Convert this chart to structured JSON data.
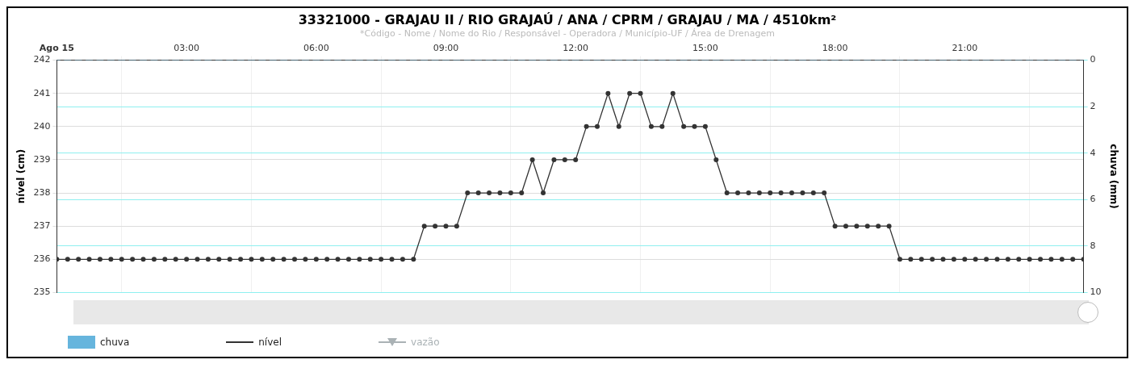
{
  "chart_data": {
    "type": "line",
    "title": "33321000 - GRAJAU II / RIO GRAJAÚ / ANA / CPRM / GRAJAU / MA / 4510km²",
    "subtitle": "*Código - Nome / Nome do Rio / Responsável - Operadora / Município-UF / Área de Drenagem",
    "ylabel": "nível (cm)",
    "y2label": "chuva (mm)",
    "x": [
      0,
      0.25,
      0.5,
      0.75,
      1,
      1.25,
      1.5,
      1.75,
      2,
      2.25,
      2.5,
      2.75,
      3,
      3.25,
      3.5,
      3.75,
      4,
      4.25,
      4.5,
      4.75,
      5,
      5.25,
      5.5,
      5.75,
      6,
      6.25,
      6.5,
      6.75,
      7,
      7.25,
      7.5,
      7.75,
      8,
      8.25,
      8.5,
      8.75,
      9,
      9.25,
      9.5,
      9.75,
      10,
      10.25,
      10.5,
      10.75,
      11,
      11.25,
      11.5,
      11.75,
      12,
      12.25,
      12.5,
      12.75,
      13,
      13.25,
      13.5,
      13.75,
      14,
      14.25,
      14.5,
      14.75,
      15,
      15.25,
      15.5,
      15.75,
      16,
      16.25,
      16.5,
      16.75,
      17,
      17.25,
      17.5,
      17.75,
      18,
      18.25,
      18.5,
      18.75,
      19,
      19.25,
      19.5,
      19.75,
      20,
      20.25,
      20.5,
      20.75,
      21,
      21.25,
      21.5,
      21.75,
      22,
      22.25,
      22.5,
      22.75,
      23,
      23.25,
      23.5,
      23.75
    ],
    "series": [
      {
        "name": "chuva",
        "type": "bar",
        "axis": "y2",
        "color": "#66b5dd",
        "values": [
          0,
          0,
          0,
          0,
          0,
          0,
          0,
          0,
          0,
          0,
          0,
          0,
          0,
          0,
          0,
          0,
          0,
          0,
          0,
          0,
          0,
          0,
          0,
          0,
          0,
          0,
          0,
          0,
          0,
          0,
          0,
          0,
          0,
          0,
          0,
          0,
          0,
          0,
          0,
          0,
          0,
          0,
          0,
          0,
          0,
          0,
          0,
          0,
          0,
          0,
          0,
          0,
          0,
          0,
          0,
          0,
          0,
          0,
          0,
          0,
          0,
          0,
          0,
          0,
          0,
          0,
          0,
          0,
          0,
          0,
          0,
          0,
          0,
          0,
          0,
          0,
          0,
          0,
          0,
          0,
          0,
          0,
          0,
          0,
          0,
          0,
          0,
          0,
          0,
          0,
          0,
          0,
          0,
          0,
          0,
          0
        ]
      },
      {
        "name": "nível",
        "color": "#333333",
        "marker": "circle",
        "values": [
          236,
          236,
          236,
          236,
          236,
          236,
          236,
          236,
          236,
          236,
          236,
          236,
          236,
          236,
          236,
          236,
          236,
          236,
          236,
          236,
          236,
          236,
          236,
          236,
          236,
          236,
          236,
          236,
          236,
          236,
          236,
          236,
          236,
          236,
          237,
          237,
          237,
          237,
          238,
          238,
          238,
          238,
          238,
          238,
          239,
          238,
          239,
          239,
          239,
          240,
          240,
          241,
          240,
          241,
          241,
          240,
          240,
          241,
          240,
          240,
          240,
          239,
          238,
          238,
          238,
          238,
          238,
          238,
          238,
          238,
          238,
          238,
          237,
          237,
          237,
          237,
          237,
          237,
          236,
          236,
          236,
          236,
          236,
          236,
          236,
          236,
          236,
          236,
          236,
          236,
          236,
          236,
          236,
          236,
          236,
          236
        ]
      },
      {
        "name": "vazão",
        "type": "line",
        "color": "#aab2b5",
        "marker": "triangle",
        "values": [
          null,
          null,
          null,
          null,
          null,
          null,
          null,
          null,
          null,
          null,
          null,
          null,
          null,
          null,
          null,
          null,
          null,
          null,
          null,
          null,
          null,
          null,
          null,
          null,
          null,
          null,
          null,
          null,
          null,
          null,
          null,
          null,
          null,
          null,
          null,
          null,
          null,
          null,
          null,
          null,
          null,
          null,
          null,
          null,
          null,
          null,
          null,
          null,
          null,
          null,
          null,
          null,
          null,
          null,
          null,
          null,
          null,
          null,
          null,
          null,
          null,
          null,
          null,
          null,
          null,
          null,
          null,
          null,
          null,
          null,
          null,
          null,
          null,
          null,
          null,
          null,
          null,
          null,
          null,
          null,
          null,
          null,
          null,
          null,
          null,
          null,
          null,
          null,
          null,
          null,
          null,
          null,
          null,
          null,
          null,
          null
        ]
      }
    ],
    "xlim": [
      0,
      23.75
    ],
    "xticks": [
      {
        "value": 0,
        "label": "Ago 15"
      },
      {
        "value": 3,
        "label": "03:00"
      },
      {
        "value": 6,
        "label": "06:00"
      },
      {
        "value": 9,
        "label": "09:00"
      },
      {
        "value": 12,
        "label": "12:00"
      },
      {
        "value": 15,
        "label": "15:00"
      },
      {
        "value": 18,
        "label": "18:00"
      },
      {
        "value": 21,
        "label": "21:00"
      }
    ],
    "ylim": [
      235,
      242
    ],
    "yticks": [
      235,
      236,
      237,
      238,
      239,
      240,
      241,
      242
    ],
    "y2lim": [
      10,
      0
    ],
    "y2ticks": [
      0,
      2,
      4,
      6,
      8,
      10
    ],
    "grid": true,
    "legend": "bottom left"
  }
}
